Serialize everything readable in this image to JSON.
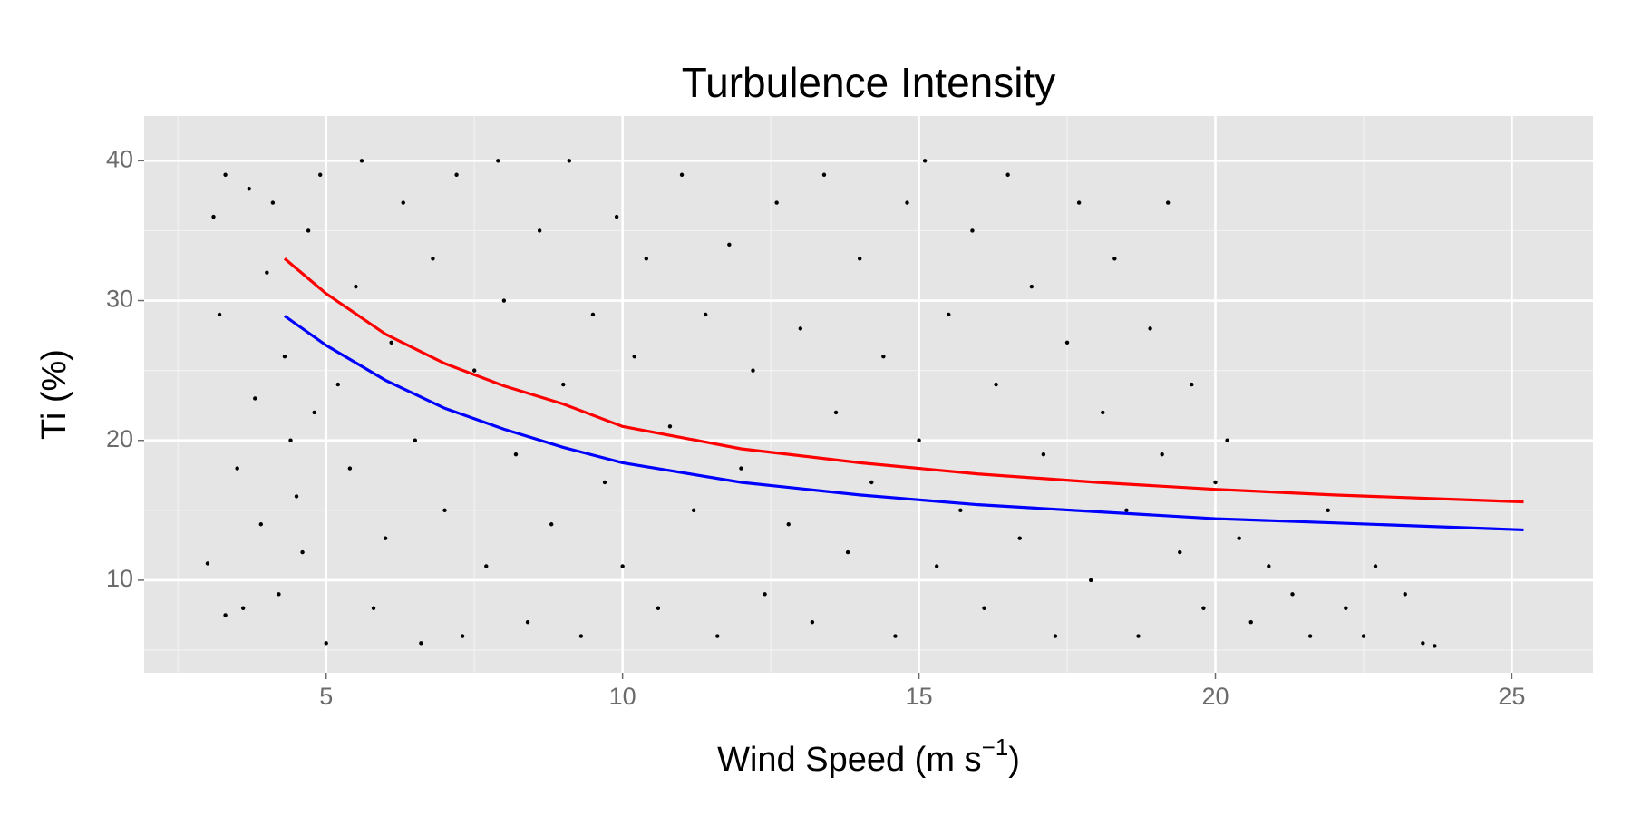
{
  "chart_data": {
    "type": "scatter",
    "title": "Turbulence Intensity",
    "xlabel": [
      "Wind Speed (m s",
      "−1",
      ")"
    ],
    "ylabel": "Ti (%)",
    "xlim": [
      1.93,
      26.37
    ],
    "ylim": [
      3.38,
      43.2
    ],
    "xticks": [
      5,
      10,
      15,
      20,
      25
    ],
    "yticks": [
      10,
      20,
      30,
      40
    ],
    "xminor": [
      2.5,
      7.5,
      12.5,
      17.5,
      22.5
    ],
    "yminor": [
      5,
      15,
      25,
      35
    ],
    "grid": true,
    "panel_color": "#e5e5e5",
    "points": {
      "color": "#000000",
      "x": [
        3.0,
        3.1,
        3.2,
        3.3,
        3.3,
        3.5,
        3.6,
        3.7,
        3.8,
        3.9,
        4.0,
        4.1,
        4.2,
        4.3,
        4.4,
        4.5,
        4.6,
        4.7,
        4.8,
        4.9,
        5.0,
        5.2,
        5.4,
        5.5,
        5.6,
        5.8,
        6.0,
        6.1,
        6.3,
        6.5,
        6.6,
        6.8,
        7.0,
        7.2,
        7.3,
        7.5,
        7.7,
        7.9,
        8.0,
        8.2,
        8.4,
        8.6,
        8.8,
        9.0,
        9.1,
        9.3,
        9.5,
        9.7,
        9.9,
        10.0,
        10.2,
        10.4,
        10.6,
        10.8,
        11.0,
        11.2,
        11.4,
        11.6,
        11.8,
        12.0,
        12.2,
        12.4,
        12.6,
        12.8,
        13.0,
        13.2,
        13.4,
        13.6,
        13.8,
        14.0,
        14.2,
        14.4,
        14.6,
        14.8,
        15.0,
        15.1,
        15.3,
        15.5,
        15.7,
        15.9,
        16.1,
        16.3,
        16.5,
        16.7,
        16.9,
        17.1,
        17.3,
        17.5,
        17.7,
        17.9,
        18.1,
        18.3,
        18.5,
        18.7,
        18.9,
        19.1,
        19.2,
        19.4,
        19.6,
        19.8,
        20.0,
        20.2,
        20.4,
        20.6,
        20.9,
        21.3,
        21.6,
        21.9,
        22.2,
        22.5,
        22.7,
        23.2,
        23.5,
        23.7
      ],
      "y": [
        11.2,
        36,
        29,
        7.5,
        39,
        18,
        8,
        38,
        23,
        14,
        32,
        37,
        9,
        26,
        20,
        16,
        12,
        35,
        22,
        39,
        5.5,
        24,
        18,
        31,
        40,
        8,
        13,
        27,
        37,
        20,
        5.5,
        33,
        15,
        39,
        6,
        25,
        11,
        40,
        30,
        19,
        7,
        35,
        14,
        24,
        40,
        6,
        29,
        17,
        36,
        11,
        26,
        33,
        8,
        21,
        39,
        15,
        29,
        6,
        34,
        18,
        25,
        9,
        37,
        14,
        28,
        7,
        39,
        22,
        12,
        33,
        17,
        26,
        6,
        37,
        20,
        40,
        11,
        29,
        15,
        35,
        8,
        24,
        39,
        13,
        31,
        19,
        6,
        27,
        37,
        10,
        22,
        33,
        15,
        6,
        28,
        19,
        37,
        12,
        24,
        8,
        17,
        20,
        13,
        7,
        11,
        9,
        6,
        15,
        8,
        6,
        11,
        9,
        5.5,
        5.3
      ]
    },
    "series": [
      {
        "type": "line",
        "color": "#ff0000",
        "x": [
          4.3,
          5,
          6,
          7,
          8,
          9,
          10,
          12,
          14,
          16,
          18,
          20,
          22,
          25.2
        ],
        "y": [
          33,
          30.5,
          27.6,
          25.5,
          23.9,
          22.6,
          21.0,
          19.4,
          18.4,
          17.6,
          17.0,
          16.5,
          16.1,
          15.6
        ]
      },
      {
        "type": "line",
        "color": "#0000ff",
        "x": [
          4.3,
          5,
          6,
          7,
          8,
          9,
          10,
          12,
          14,
          16,
          18,
          20,
          22,
          25.2
        ],
        "y": [
          28.9,
          26.8,
          24.3,
          22.3,
          20.8,
          19.5,
          18.4,
          17.0,
          16.1,
          15.4,
          14.9,
          14.4,
          14.1,
          13.6
        ]
      }
    ]
  }
}
